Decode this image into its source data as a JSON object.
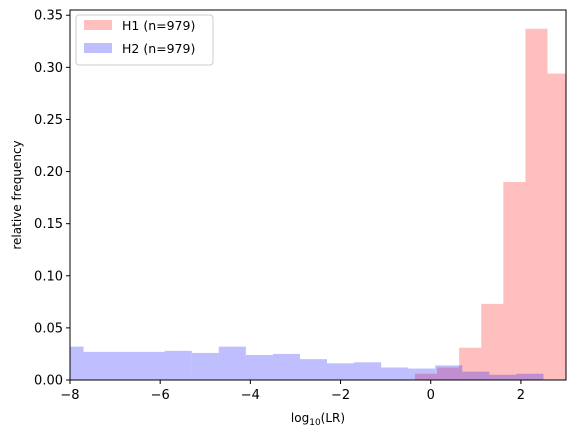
{
  "chart_data": {
    "type": "histogram",
    "xlabel_base": "log",
    "xlabel_sub": "10",
    "xlabel_tail": "(LR)",
    "ylabel": "relative frequency",
    "xlim": [
      -8,
      3
    ],
    "ylim": [
      0,
      0.355
    ],
    "xticks": [
      -8,
      -6,
      -4,
      -2,
      0,
      2
    ],
    "xtick_labels": [
      "−8",
      "−6",
      "−4",
      "−2",
      "0",
      "2"
    ],
    "yticks": [
      0,
      0.05,
      0.1,
      0.15,
      0.2,
      0.25,
      0.3,
      0.35
    ],
    "ytick_labels": [
      "0.00",
      "0.05",
      "0.10",
      "0.15",
      "0.20",
      "0.25",
      "0.30",
      "0.35"
    ],
    "legend_position": "top-left",
    "series": [
      {
        "name": "H1 (n=979)",
        "color": "#ff0000",
        "alpha": 0.25,
        "bins": [
          {
            "x0": -0.35,
            "x1": 0.14,
            "y": 0.006
          },
          {
            "x0": 0.14,
            "x1": 0.63,
            "y": 0.012
          },
          {
            "x0": 0.63,
            "x1": 1.12,
            "y": 0.031
          },
          {
            "x0": 1.12,
            "x1": 1.61,
            "y": 0.073
          },
          {
            "x0": 1.61,
            "x1": 2.1,
            "y": 0.19
          },
          {
            "x0": 2.1,
            "x1": 2.59,
            "y": 0.337
          },
          {
            "x0": 2.59,
            "x1": 3.08,
            "y": 0.294
          }
        ]
      },
      {
        "name": "H2 (n=979)",
        "color": "#0000ff",
        "alpha": 0.25,
        "bins": [
          {
            "x0": -8.3,
            "x1": -7.7,
            "y": 0.032
          },
          {
            "x0": -7.7,
            "x1": -7.1,
            "y": 0.027
          },
          {
            "x0": -7.1,
            "x1": -6.5,
            "y": 0.027
          },
          {
            "x0": -6.5,
            "x1": -5.9,
            "y": 0.027
          },
          {
            "x0": -5.9,
            "x1": -5.3,
            "y": 0.028
          },
          {
            "x0": -5.3,
            "x1": -4.7,
            "y": 0.026
          },
          {
            "x0": -4.7,
            "x1": -4.1,
            "y": 0.032
          },
          {
            "x0": -4.1,
            "x1": -3.5,
            "y": 0.024
          },
          {
            "x0": -3.5,
            "x1": -2.9,
            "y": 0.025
          },
          {
            "x0": -2.9,
            "x1": -2.3,
            "y": 0.02
          },
          {
            "x0": -2.3,
            "x1": -1.7,
            "y": 0.016
          },
          {
            "x0": -1.7,
            "x1": -1.1,
            "y": 0.017
          },
          {
            "x0": -1.1,
            "x1": -0.5,
            "y": 0.012
          },
          {
            "x0": -0.5,
            "x1": 0.1,
            "y": 0.011
          },
          {
            "x0": 0.1,
            "x1": 0.7,
            "y": 0.014
          },
          {
            "x0": 0.7,
            "x1": 1.3,
            "y": 0.008
          },
          {
            "x0": 1.3,
            "x1": 1.9,
            "y": 0.005
          },
          {
            "x0": 1.9,
            "x1": 2.5,
            "y": 0.006
          }
        ]
      }
    ]
  }
}
